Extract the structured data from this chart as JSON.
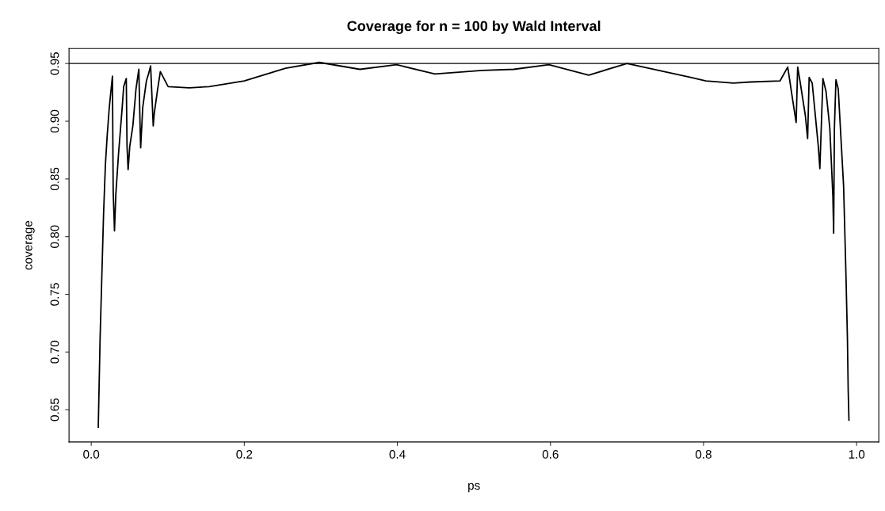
{
  "chart_data": {
    "type": "line",
    "title": "Coverage for n = 100 by Wald Interval",
    "xlabel": "ps",
    "ylabel": "coverage",
    "x": [
      0.0092,
      0.0116,
      0.014,
      0.0161,
      0.0185,
      0.0208,
      0.0236,
      0.0277,
      0.0287,
      0.0304,
      0.0321,
      0.0356,
      0.0407,
      0.0424,
      0.0458,
      0.0468,
      0.0482,
      0.0503,
      0.0544,
      0.0585,
      0.0622,
      0.0639,
      0.0646,
      0.0673,
      0.0721,
      0.0749,
      0.0776,
      0.0803,
      0.081,
      0.0824,
      0.0868,
      0.0903,
      0.1005,
      0.128,
      0.154,
      0.2,
      0.254,
      0.298,
      0.351,
      0.399,
      0.449,
      0.511,
      0.552,
      0.598,
      0.65,
      0.7,
      0.783,
      0.803,
      0.839,
      0.861,
      0.9,
      0.91,
      0.917,
      0.921,
      0.923,
      0.926,
      0.933,
      0.936,
      0.938,
      0.942,
      0.95,
      0.952,
      0.956,
      0.96,
      0.965,
      0.969,
      0.97,
      0.971,
      0.973,
      0.976,
      0.983,
      0.986,
      0.988,
      0.989,
      0.99
    ],
    "series": [
      {
        "color": "#000000",
        "values": [
          0.635,
          0.712,
          0.769,
          0.819,
          0.862,
          0.887,
          0.912,
          0.939,
          0.839,
          0.805,
          0.836,
          0.871,
          0.914,
          0.93,
          0.937,
          0.878,
          0.858,
          0.878,
          0.896,
          0.928,
          0.945,
          0.894,
          0.877,
          0.912,
          0.935,
          0.941,
          0.948,
          0.907,
          0.896,
          0.907,
          0.928,
          0.943,
          0.93,
          0.929,
          0.93,
          0.935,
          0.946,
          0.951,
          0.945,
          0.949,
          0.941,
          0.944,
          0.945,
          0.949,
          0.94,
          0.95,
          0.938,
          0.935,
          0.933,
          0.934,
          0.935,
          0.947,
          0.916,
          0.899,
          0.947,
          0.935,
          0.905,
          0.885,
          0.938,
          0.933,
          0.878,
          0.859,
          0.937,
          0.926,
          0.894,
          0.835,
          0.803,
          0.894,
          0.936,
          0.928,
          0.844,
          0.769,
          0.712,
          0.667,
          0.641
        ]
      }
    ],
    "xlim": [
      -0.029,
      1.029
    ],
    "ylim": [
      0.622,
      0.963
    ],
    "xticks": [
      {
        "value": 0,
        "label": "0.0"
      },
      {
        "value": 0.2,
        "label": "0.2"
      },
      {
        "value": 0.4,
        "label": "0.4"
      },
      {
        "value": 0.6,
        "label": "0.6"
      },
      {
        "value": 0.8,
        "label": "0.8"
      },
      {
        "value": 1,
        "label": "1.0"
      }
    ],
    "yticks": [
      0.65,
      {
        "value": 0.7,
        "label": "0.70"
      },
      0.75,
      {
        "value": 0.8,
        "label": "0.80"
      },
      0.85,
      {
        "value": 0.9,
        "label": "0.90"
      },
      0.95
    ],
    "ref_lines": [
      {
        "axis": "y",
        "value": 0.95,
        "color": "#000000"
      }
    ],
    "grid": false,
    "legend": false,
    "marker": "none",
    "line_style": "solid"
  }
}
